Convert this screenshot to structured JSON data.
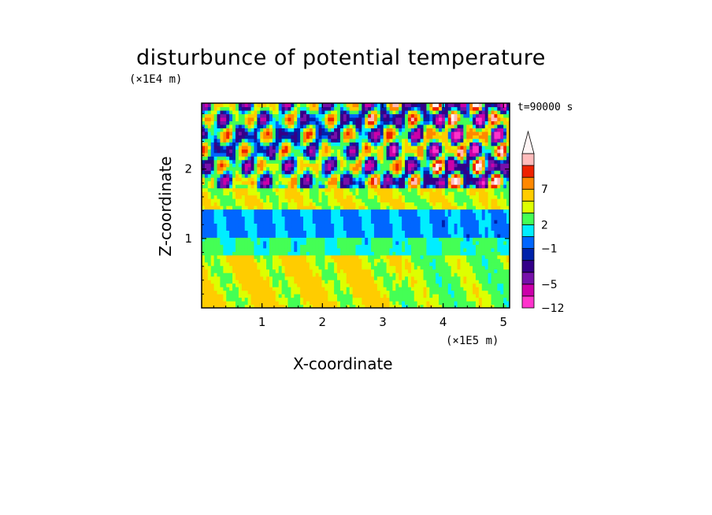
{
  "chart_data": {
    "type": "heatmap",
    "title": "disturbunce of potential temperature",
    "xlabel": "X-coordinate",
    "ylabel": "Z-coordinate",
    "x_unit": "(×1E5 m)",
    "y_unit": "(×1E4 m)",
    "annotation": "t=90000 s",
    "x_ticks": [
      "1",
      "2",
      "3",
      "4",
      "5"
    ],
    "y_ticks": [
      "1",
      "2"
    ],
    "xlim": [
      0,
      5.1
    ],
    "ylim": [
      0,
      2.95
    ],
    "colorbar": {
      "tick_labels": [
        "7",
        "2",
        "−1",
        "−5",
        "−12"
      ],
      "extend": "max",
      "colors": [
        "#ff33cc",
        "#cc00aa",
        "#7711aa",
        "#330088",
        "#0022aa",
        "#0066ff",
        "#00eeff",
        "#44ff55",
        "#ddff00",
        "#ffcc00",
        "#ff8800",
        "#ee2200",
        "#ffbbbb",
        "#fff5f5"
      ]
    },
    "field_description_layers": [
      {
        "z_range": [
          0.0,
          0.75
        ],
        "dominant": "yellow-green"
      },
      {
        "z_range": [
          0.75,
          1.0
        ],
        "dominant": "green"
      },
      {
        "z_range": [
          1.0,
          1.4
        ],
        "dominant": "cyan"
      },
      {
        "z_range": [
          1.4,
          1.75
        ],
        "dominant": "yellow"
      },
      {
        "z_range": [
          1.75,
          2.95
        ],
        "dominant": "alternating orange/blue waves"
      }
    ]
  }
}
